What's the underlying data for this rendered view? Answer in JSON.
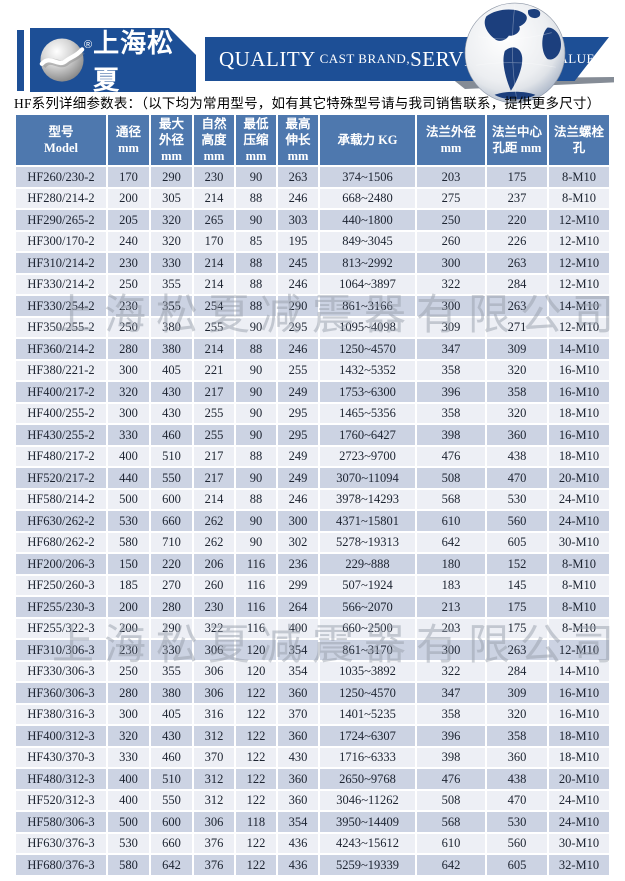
{
  "brand": {
    "name": "上海松夏",
    "registered_mark": "®",
    "slogan": {
      "quality": "QUALITY",
      "cast": " CAST BRAND,",
      "service": "SERVICE",
      "creat": " CREAT VALUE"
    },
    "banner_color": "#1d4f96"
  },
  "title": "HF系列详细参数表：（以下均为常用型号，如有其它特殊型号请与我司销售联系，提供更多尺寸）",
  "watermark": "上海松夏减震器有限公司",
  "icons": {
    "globe": "globe-puzzle-icon",
    "sphere": "brand-sphere-icon"
  },
  "table": {
    "header_color": "#4e78ae",
    "alt_row_color": "#ccd3e3",
    "row_color": "#edeff5",
    "columns": [
      "型号\nModel",
      "通径\nmm",
      "最大\n外径\nmm",
      "自然\n高度\nmm",
      "最低\n压缩\nmm",
      "最高\n伸长\nmm",
      "承载力 KG",
      "法兰外径\nmm",
      "法兰中心\n孔距 mm",
      "法兰螺栓孔"
    ],
    "rows": [
      [
        "HF260/230-2",
        "170",
        "290",
        "230",
        "90",
        "263",
        "374~1506",
        "203",
        "175",
        "8-M10"
      ],
      [
        "HF280/214-2",
        "200",
        "305",
        "214",
        "88",
        "246",
        "668~2480",
        "275",
        "237",
        "8-M10"
      ],
      [
        "HF290/265-2",
        "205",
        "320",
        "265",
        "90",
        "303",
        "440~1800",
        "250",
        "220",
        "12-M10"
      ],
      [
        "HF300/170-2",
        "240",
        "320",
        "170",
        "85",
        "195",
        "849~3045",
        "260",
        "226",
        "12-M10"
      ],
      [
        "HF310/214-2",
        "230",
        "330",
        "214",
        "88",
        "245",
        "813~2992",
        "300",
        "263",
        "12-M10"
      ],
      [
        "HF330/214-2",
        "250",
        "355",
        "214",
        "88",
        "246",
        "1064~3897",
        "322",
        "284",
        "12-M10"
      ],
      [
        "HF330/254-2",
        "230",
        "355",
        "254",
        "88",
        "290",
        "861~3166",
        "300",
        "263",
        "14-M10"
      ],
      [
        "HF350/255-2",
        "250",
        "380",
        "255",
        "90",
        "295",
        "1095~4098",
        "309",
        "271",
        "12-M10"
      ],
      [
        "HF360/214-2",
        "280",
        "380",
        "214",
        "88",
        "246",
        "1250~4570",
        "347",
        "309",
        "14-M10"
      ],
      [
        "HF380/221-2",
        "300",
        "405",
        "221",
        "90",
        "255",
        "1432~5352",
        "358",
        "320",
        "16-M10"
      ],
      [
        "HF400/217-2",
        "320",
        "430",
        "217",
        "90",
        "249",
        "1753~6300",
        "396",
        "358",
        "16-M10"
      ],
      [
        "HF400/255-2",
        "300",
        "430",
        "255",
        "90",
        "295",
        "1465~5356",
        "358",
        "320",
        "18-M10"
      ],
      [
        "HF430/255-2",
        "330",
        "460",
        "255",
        "90",
        "295",
        "1760~6427",
        "398",
        "360",
        "16-M10"
      ],
      [
        "HF480/217-2",
        "400",
        "510",
        "217",
        "88",
        "249",
        "2723~9700",
        "476",
        "438",
        "18-M10"
      ],
      [
        "HF520/217-2",
        "440",
        "550",
        "217",
        "90",
        "249",
        "3070~11094",
        "508",
        "470",
        "20-M10"
      ],
      [
        "HF580/214-2",
        "500",
        "600",
        "214",
        "88",
        "246",
        "3978~14293",
        "568",
        "530",
        "24-M10"
      ],
      [
        "HF630/262-2",
        "530",
        "660",
        "262",
        "90",
        "300",
        "4371~15801",
        "610",
        "560",
        "24-M10"
      ],
      [
        "HF680/262-2",
        "580",
        "710",
        "262",
        "90",
        "302",
        "5278~19313",
        "642",
        "605",
        "30-M10"
      ],
      [
        "HF200/206-3",
        "150",
        "220",
        "206",
        "116",
        "236",
        "229~888",
        "180",
        "152",
        "8-M10"
      ],
      [
        "HF250/260-3",
        "185",
        "270",
        "260",
        "116",
        "299",
        "507~1924",
        "183",
        "145",
        "8-M10"
      ],
      [
        "HF255/230-3",
        "200",
        "280",
        "230",
        "116",
        "264",
        "566~2070",
        "213",
        "175",
        "8-M10"
      ],
      [
        "HF255/322-3",
        "200",
        "290",
        "322",
        "116",
        "400",
        "660~2500",
        "203",
        "175",
        "8-M10"
      ],
      [
        "HF310/306-3",
        "230",
        "330",
        "306",
        "120",
        "354",
        "861~3170",
        "300",
        "263",
        "12-M10"
      ],
      [
        "HF330/306-3",
        "250",
        "355",
        "306",
        "120",
        "354",
        "1035~3892",
        "322",
        "284",
        "14-M10"
      ],
      [
        "HF360/306-3",
        "280",
        "380",
        "306",
        "122",
        "360",
        "1250~4570",
        "347",
        "309",
        "16-M10"
      ],
      [
        "HF380/316-3",
        "300",
        "405",
        "316",
        "122",
        "370",
        "1401~5235",
        "358",
        "320",
        "16-M10"
      ],
      [
        "HF400/312-3",
        "320",
        "430",
        "312",
        "122",
        "360",
        "1724~6307",
        "396",
        "358",
        "18-M10"
      ],
      [
        "HF430/370-3",
        "330",
        "460",
        "370",
        "122",
        "430",
        "1716~6333",
        "398",
        "360",
        "18-M10"
      ],
      [
        "HF480/312-3",
        "400",
        "510",
        "312",
        "122",
        "360",
        "2650~9768",
        "476",
        "438",
        "20-M10"
      ],
      [
        "HF520/312-3",
        "400",
        "550",
        "312",
        "122",
        "360",
        "3046~11262",
        "508",
        "470",
        "24-M10"
      ],
      [
        "HF580/306-3",
        "500",
        "600",
        "306",
        "118",
        "354",
        "3950~14409",
        "568",
        "530",
        "24-M10"
      ],
      [
        "HF630/376-3",
        "530",
        "660",
        "376",
        "122",
        "436",
        "4243~15612",
        "610",
        "560",
        "30-M10"
      ],
      [
        "HF680/376-3",
        "580",
        "642",
        "376",
        "122",
        "436",
        "5259~19339",
        "642",
        "605",
        "32-M10"
      ]
    ]
  }
}
